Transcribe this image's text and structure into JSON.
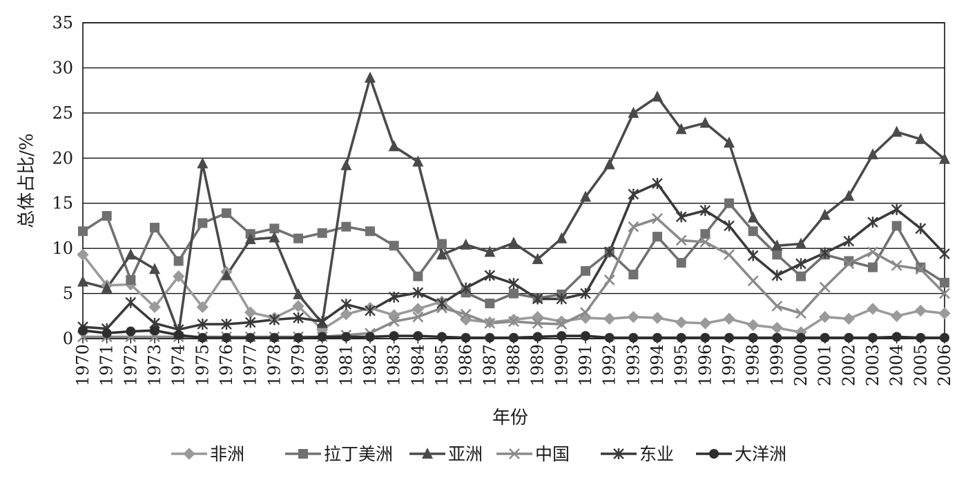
{
  "chart_data": {
    "type": "line",
    "title": "",
    "xlabel": "年份",
    "ylabel": "总体占比/%",
    "ylim": [
      0,
      35
    ],
    "yticks": [
      0,
      5,
      10,
      15,
      20,
      25,
      30,
      35
    ],
    "grid": "horizontal",
    "legend_position": "bottom",
    "categories": [
      "1970",
      "1971",
      "1972",
      "1973",
      "1974",
      "1975",
      "1976",
      "1977",
      "1978",
      "1979",
      "1980",
      "1981",
      "1982",
      "1983",
      "1984",
      "1985",
      "1986",
      "1987",
      "1988",
      "1989",
      "1990",
      "1991",
      "1992",
      "1993",
      "1994",
      "1995",
      "1996",
      "1997",
      "1998",
      "1999",
      "2000",
      "2001",
      "2002",
      "2003",
      "2004",
      "2005",
      "2006"
    ],
    "series": [
      {
        "name": "非洲",
        "marker": "diamond",
        "color": "#9a9a9a",
        "values": [
          9.3,
          5.9,
          6.0,
          3.5,
          6.9,
          3.5,
          7.4,
          2.9,
          2.3,
          3.6,
          1.0,
          2.7,
          3.4,
          2.6,
          3.3,
          4.1,
          2.1,
          1.8,
          2.1,
          2.4,
          1.9,
          2.3,
          2.2,
          2.4,
          2.3,
          1.8,
          1.7,
          2.2,
          1.5,
          1.2,
          0.7,
          2.4,
          2.2,
          3.3,
          2.5,
          3.1,
          2.8
        ]
      },
      {
        "name": "拉丁美洲",
        "marker": "square",
        "color": "#707070",
        "values": [
          11.9,
          13.6,
          6.5,
          12.3,
          8.6,
          12.8,
          13.9,
          11.6,
          12.2,
          11.1,
          11.7,
          12.4,
          11.9,
          10.3,
          6.9,
          10.5,
          5.1,
          3.9,
          5.0,
          4.5,
          4.9,
          7.5,
          9.6,
          7.1,
          11.3,
          8.4,
          11.6,
          15.0,
          11.9,
          9.3,
          6.9,
          9.3,
          8.6,
          7.9,
          12.5,
          7.9,
          6.2
        ]
      },
      {
        "name": "亚洲",
        "marker": "triangle",
        "color": "#4a4a4a",
        "values": [
          6.3,
          5.6,
          9.3,
          7.7,
          0.6,
          19.4,
          7.0,
          11.0,
          11.2,
          4.9,
          1.7,
          19.2,
          28.9,
          21.3,
          19.6,
          9.3,
          10.4,
          9.6,
          10.6,
          8.8,
          11.1,
          15.7,
          19.3,
          25.0,
          26.8,
          23.2,
          23.9,
          21.7,
          13.4,
          10.3,
          10.5,
          13.7,
          15.8,
          20.4,
          22.9,
          22.1,
          19.9
        ]
      },
      {
        "name": "中国",
        "marker": "x",
        "color": "#8a8a8a",
        "values": [
          0.2,
          0.2,
          0.2,
          0.2,
          0.2,
          0.2,
          0.2,
          0.2,
          0.2,
          0.2,
          0.2,
          0.4,
          0.6,
          1.9,
          2.4,
          3.4,
          2.7,
          1.7,
          1.9,
          1.7,
          1.6,
          2.9,
          6.5,
          12.4,
          13.3,
          10.9,
          10.7,
          9.3,
          6.4,
          3.6,
          2.8,
          5.7,
          8.3,
          9.6,
          8.1,
          7.7,
          5.0
        ]
      },
      {
        "name": "东业",
        "marker": "star",
        "color": "#3a3a3a",
        "values": [
          1.3,
          1.1,
          4.0,
          1.7,
          1.0,
          1.6,
          1.6,
          1.8,
          2.1,
          2.3,
          1.9,
          3.8,
          3.1,
          4.6,
          5.1,
          3.9,
          5.6,
          7.0,
          6.1,
          4.4,
          4.4,
          5.0,
          9.6,
          16.0,
          17.2,
          13.5,
          14.2,
          12.5,
          9.2,
          7.0,
          8.3,
          9.5,
          10.8,
          12.9,
          14.3,
          12.2,
          9.4
        ]
      },
      {
        "name": "大洋洲",
        "marker": "circle",
        "color": "#2e2e2e",
        "values": [
          0.9,
          0.6,
          0.8,
          0.9,
          0.4,
          0.1,
          0.1,
          0.1,
          0.1,
          0.1,
          0.2,
          0.2,
          0.2,
          0.3,
          0.3,
          0.2,
          0.1,
          0.1,
          0.1,
          0.2,
          0.3,
          0.3,
          0.1,
          0.1,
          0.1,
          0.1,
          0.1,
          0.1,
          0.1,
          0.1,
          0.1,
          0.1,
          0.1,
          0.1,
          0.2,
          0.1,
          0.1
        ]
      }
    ]
  }
}
